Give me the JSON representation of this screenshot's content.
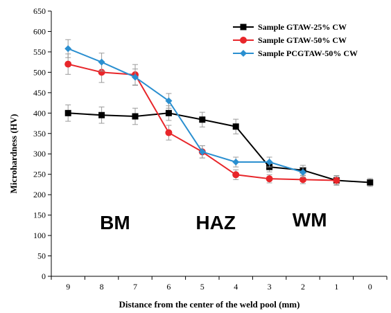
{
  "chart_data": {
    "type": "line",
    "title": "",
    "xlabel": "Distance from the center of the weld pool (mm)",
    "ylabel": "Microhardness (HV)",
    "categories": [
      "9",
      "8",
      "7",
      "6",
      "5",
      "4",
      "3",
      "2",
      "1",
      "0"
    ],
    "ylim": [
      0,
      650
    ],
    "yticks": [
      0,
      50,
      100,
      150,
      200,
      250,
      300,
      350,
      400,
      450,
      500,
      550,
      600,
      650
    ],
    "grid": false,
    "legend_position": "top-right",
    "series": [
      {
        "name": "Sample GTAW-25% CW",
        "color": "#000000",
        "marker": "square",
        "x": [
          "9",
          "8",
          "7",
          "6",
          "5",
          "4",
          "3",
          "2",
          "1",
          "0"
        ],
        "values": [
          400,
          395,
          392,
          400,
          384,
          367,
          268,
          260,
          235,
          230
        ],
        "errors": [
          20,
          20,
          20,
          18,
          18,
          18,
          12,
          12,
          12,
          10
        ]
      },
      {
        "name": "Sample GTAW-50% CW",
        "color": "#e8262a",
        "marker": "circle",
        "x": [
          "9",
          "8",
          "7",
          "6",
          "5",
          "4",
          "3",
          "2",
          "1"
        ],
        "values": [
          520,
          500,
          494,
          352,
          305,
          249,
          239,
          237,
          235
        ],
        "errors": [
          25,
          25,
          25,
          18,
          15,
          12,
          10,
          10,
          10
        ]
      },
      {
        "name": "Sample PCGTAW-50% CW",
        "color": "#2a8fd0",
        "marker": "diamond",
        "x": [
          "9",
          "8",
          "7",
          "6",
          "5",
          "4",
          "3",
          "2"
        ],
        "values": [
          558,
          525,
          488,
          430,
          305,
          280,
          280,
          255
        ],
        "errors": [
          22,
          22,
          20,
          18,
          15,
          12,
          12,
          12
        ]
      }
    ],
    "annotations": [
      {
        "text": "BM",
        "at_category": "7.6",
        "at_value": 115
      },
      {
        "text": "HAZ",
        "at_category": "4.6",
        "at_value": 115
      },
      {
        "text": "WM",
        "at_category": "1.8",
        "at_value": 122
      }
    ]
  }
}
